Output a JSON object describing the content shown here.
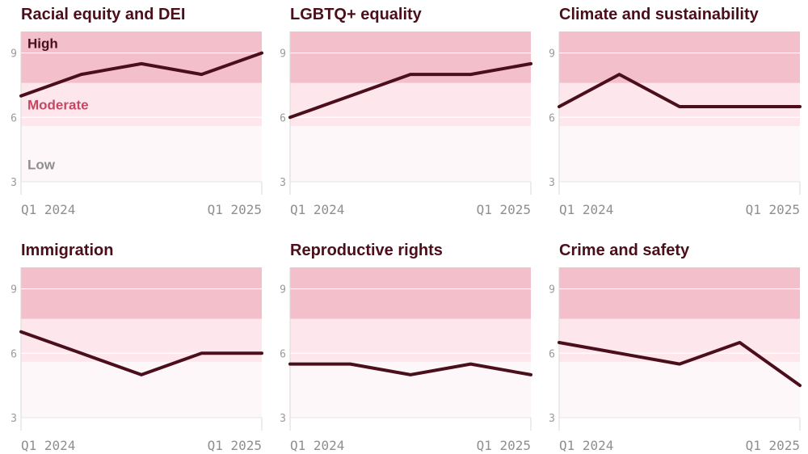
{
  "chart_data": [
    {
      "type": "line",
      "title": "Racial equity and DEI",
      "x": [
        0,
        1,
        2,
        3,
        4
      ],
      "xticks": [
        "Q1 2024",
        "Q1 2025"
      ],
      "yticks": [
        3,
        6,
        9
      ],
      "ylim": [
        3,
        10
      ],
      "bands": [
        {
          "label": "High",
          "from": 7.6,
          "to": 10
        },
        {
          "label": "Moderate",
          "from": 5.6,
          "to": 7.6
        },
        {
          "label": "Low",
          "from": 3,
          "to": 5.6
        }
      ],
      "values": [
        7,
        8,
        8.5,
        8,
        9
      ]
    },
    {
      "type": "line",
      "title": "LGBTQ+ equality",
      "x": [
        0,
        1,
        2,
        3,
        4
      ],
      "xticks": [
        "Q1 2024",
        "Q1 2025"
      ],
      "yticks": [
        3,
        6,
        9
      ],
      "ylim": [
        3,
        10
      ],
      "values": [
        6,
        7,
        8,
        8,
        8.5
      ]
    },
    {
      "type": "line",
      "title": "Climate and sustainability",
      "x": [
        0,
        1,
        2,
        3,
        4
      ],
      "xticks": [
        "Q1 2024",
        "Q1 2025"
      ],
      "yticks": [
        3,
        6,
        9
      ],
      "ylim": [
        3,
        10
      ],
      "values": [
        6.5,
        8,
        6.5,
        6.5,
        6.5
      ]
    },
    {
      "type": "line",
      "title": "Immigration",
      "x": [
        0,
        1,
        2,
        3,
        4
      ],
      "xticks": [
        "Q1 2024",
        "Q1 2025"
      ],
      "yticks": [
        3,
        6,
        9
      ],
      "ylim": [
        3,
        10
      ],
      "values": [
        7,
        6,
        5,
        6,
        6
      ]
    },
    {
      "type": "line",
      "title": "Reproductive rights",
      "x": [
        0,
        1,
        2,
        3,
        4
      ],
      "xticks": [
        "Q1 2024",
        "Q1 2025"
      ],
      "yticks": [
        3,
        6,
        9
      ],
      "ylim": [
        3,
        10
      ],
      "values": [
        5.5,
        5.5,
        5,
        5.5,
        5
      ]
    },
    {
      "type": "line",
      "title": "Crime and safety",
      "x": [
        0,
        1,
        2,
        3,
        4
      ],
      "xticks": [
        "Q1 2024",
        "Q1 2025"
      ],
      "yticks": [
        3,
        6,
        9
      ],
      "ylim": [
        3,
        10
      ],
      "values": [
        6.5,
        6,
        5.5,
        6.5,
        4.5
      ]
    }
  ],
  "colors": {
    "high_band": "#f2bfcb",
    "moderate_band": "#fde6ec",
    "low_band": "#fdf7f9",
    "line": "#4a0f1a",
    "high_label": "#4a0f1a",
    "moderate_label": "#c44862",
    "low_label": "#8e8e8e"
  }
}
